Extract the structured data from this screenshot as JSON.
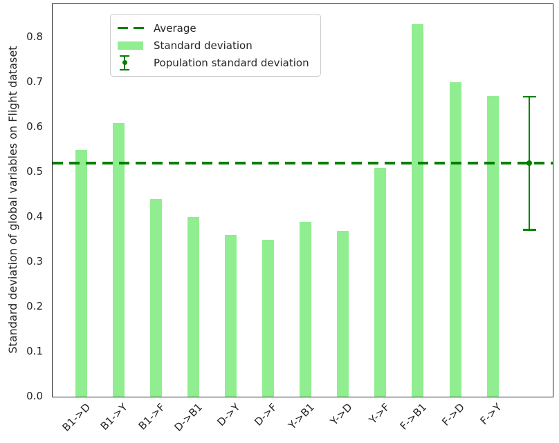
{
  "chart_data": {
    "type": "bar",
    "title": "",
    "xlabel": "",
    "ylabel": "Standard deviation of global variables on Flight dataset",
    "categories": [
      "B1->D",
      "B1->Y",
      "B1->F",
      "D->B1",
      "D->Y",
      "D->F",
      "Y->B1",
      "Y->D",
      "Y->F",
      "F->B1",
      "F->D",
      "F->Y"
    ],
    "values": [
      0.55,
      0.61,
      0.44,
      0.4,
      0.36,
      0.35,
      0.39,
      0.37,
      0.51,
      0.83,
      0.7,
      0.67
    ],
    "average_line": 0.52,
    "population_std": {
      "center": 0.52,
      "upper": 0.67,
      "lower": 0.37
    },
    "yticks": [
      0.0,
      0.1,
      0.2,
      0.3,
      0.4,
      0.5,
      0.6,
      0.7,
      0.8
    ],
    "ylim": [
      0,
      0.874
    ],
    "grid": false,
    "legend": {
      "position": "upper-left",
      "entries": [
        {
          "label": "Average",
          "type": "dashed-line"
        },
        {
          "label": "Standard deviation",
          "type": "bar"
        },
        {
          "label": "Population standard deviation",
          "type": "errorbar"
        }
      ]
    },
    "colors": {
      "bar": "#90EE90",
      "line": "#008000",
      "text": "#262626",
      "spine": "#222222",
      "legend_border": "#cccccc"
    }
  }
}
